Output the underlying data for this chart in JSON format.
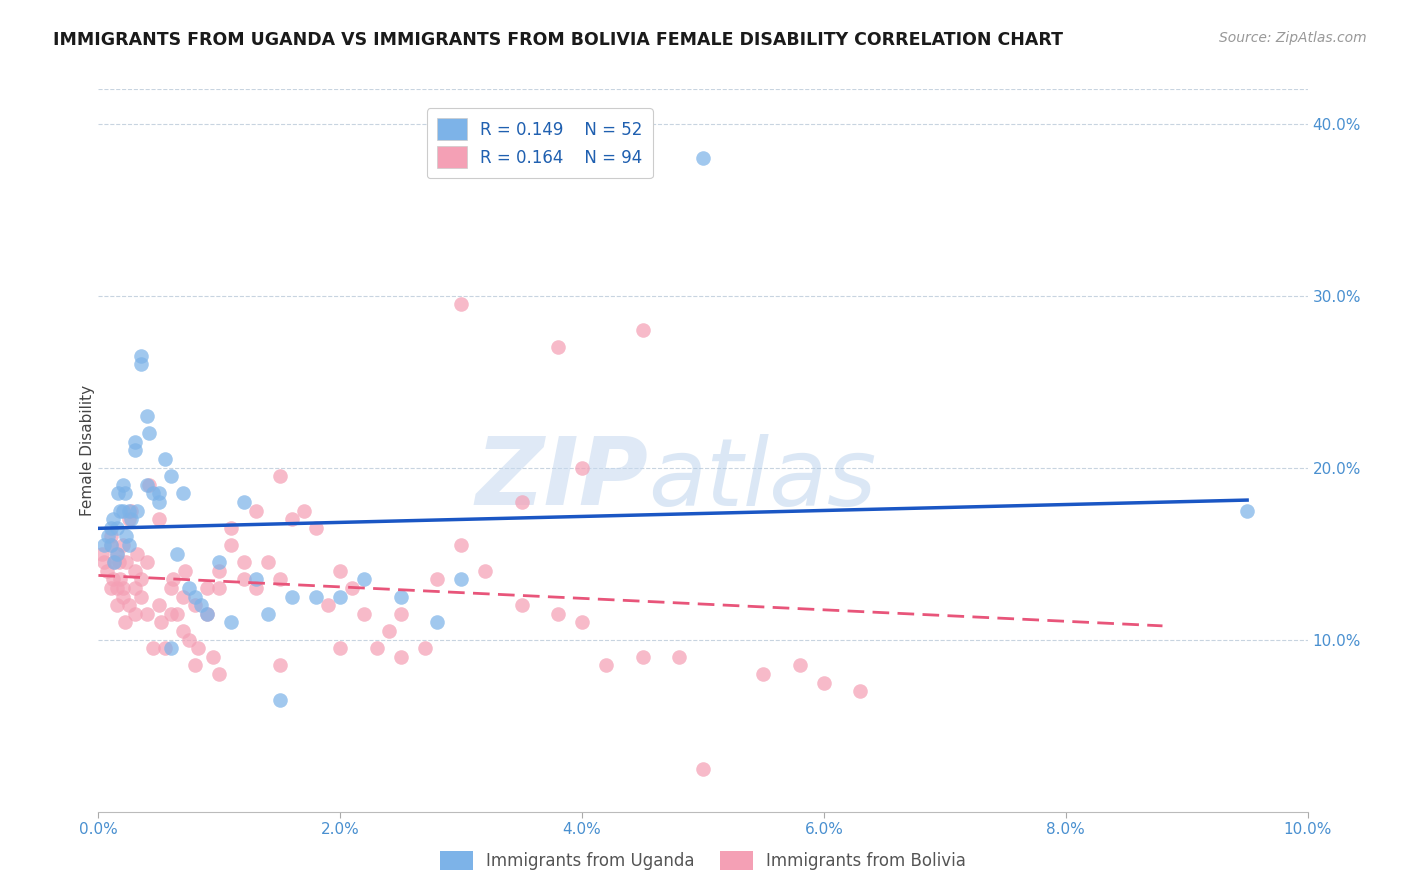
{
  "title": "IMMIGRANTS FROM UGANDA VS IMMIGRANTS FROM BOLIVIA FEMALE DISABILITY CORRELATION CHART",
  "source": "Source: ZipAtlas.com",
  "ylabel": "Female Disability",
  "xlim": [
    0.0,
    0.1
  ],
  "ylim": [
    0.0,
    0.42
  ],
  "ytick_right_labels": [
    "10.0%",
    "20.0%",
    "30.0%",
    "40.0%"
  ],
  "ytick_right_values": [
    0.1,
    0.2,
    0.3,
    0.4
  ],
  "legend_label1": "Immigrants from Uganda",
  "legend_label2": "Immigrants from Bolivia",
  "color_uganda": "#7db3e8",
  "color_bolivia": "#f4a0b5",
  "color_uganda_line": "#1a56c4",
  "color_bolivia_line": "#e8557a",
  "uganda_x": [
    0.0005,
    0.0008,
    0.001,
    0.001,
    0.0012,
    0.0013,
    0.0015,
    0.0015,
    0.0016,
    0.0018,
    0.002,
    0.002,
    0.0022,
    0.0023,
    0.0025,
    0.0025,
    0.0027,
    0.003,
    0.003,
    0.0032,
    0.0035,
    0.0035,
    0.004,
    0.004,
    0.0042,
    0.0045,
    0.005,
    0.005,
    0.0055,
    0.006,
    0.006,
    0.0065,
    0.007,
    0.0075,
    0.008,
    0.0085,
    0.009,
    0.01,
    0.011,
    0.012,
    0.013,
    0.014,
    0.015,
    0.016,
    0.018,
    0.02,
    0.022,
    0.025,
    0.028,
    0.03,
    0.05,
    0.095
  ],
  "uganda_y": [
    0.155,
    0.16,
    0.155,
    0.165,
    0.17,
    0.145,
    0.15,
    0.165,
    0.185,
    0.175,
    0.19,
    0.175,
    0.185,
    0.16,
    0.175,
    0.155,
    0.17,
    0.215,
    0.21,
    0.175,
    0.265,
    0.26,
    0.23,
    0.19,
    0.22,
    0.185,
    0.185,
    0.18,
    0.205,
    0.195,
    0.095,
    0.15,
    0.185,
    0.13,
    0.125,
    0.12,
    0.115,
    0.145,
    0.11,
    0.18,
    0.135,
    0.115,
    0.065,
    0.125,
    0.125,
    0.125,
    0.135,
    0.125,
    0.11,
    0.135,
    0.38,
    0.175
  ],
  "bolivia_x": [
    0.0003,
    0.0005,
    0.0007,
    0.001,
    0.001,
    0.001,
    0.0012,
    0.0013,
    0.0015,
    0.0015,
    0.0015,
    0.0017,
    0.0018,
    0.002,
    0.002,
    0.002,
    0.0022,
    0.0023,
    0.0025,
    0.0025,
    0.0027,
    0.003,
    0.003,
    0.003,
    0.0032,
    0.0035,
    0.0035,
    0.004,
    0.004,
    0.0042,
    0.0045,
    0.005,
    0.005,
    0.0052,
    0.0055,
    0.006,
    0.006,
    0.0062,
    0.0065,
    0.007,
    0.007,
    0.0072,
    0.0075,
    0.008,
    0.008,
    0.0082,
    0.009,
    0.009,
    0.0095,
    0.01,
    0.01,
    0.011,
    0.011,
    0.012,
    0.012,
    0.013,
    0.013,
    0.014,
    0.015,
    0.015,
    0.016,
    0.017,
    0.018,
    0.019,
    0.02,
    0.021,
    0.022,
    0.023,
    0.024,
    0.025,
    0.027,
    0.028,
    0.03,
    0.032,
    0.035,
    0.038,
    0.04,
    0.042,
    0.045,
    0.048,
    0.03,
    0.045,
    0.05,
    0.055,
    0.038,
    0.02,
    0.015,
    0.01,
    0.058,
    0.06,
    0.063,
    0.04,
    0.035,
    0.025
  ],
  "bolivia_y": [
    0.15,
    0.145,
    0.14,
    0.155,
    0.13,
    0.16,
    0.135,
    0.145,
    0.15,
    0.13,
    0.12,
    0.145,
    0.135,
    0.13,
    0.125,
    0.155,
    0.11,
    0.145,
    0.17,
    0.12,
    0.175,
    0.14,
    0.13,
    0.115,
    0.15,
    0.135,
    0.125,
    0.145,
    0.115,
    0.19,
    0.095,
    0.12,
    0.17,
    0.11,
    0.095,
    0.13,
    0.115,
    0.135,
    0.115,
    0.125,
    0.105,
    0.14,
    0.1,
    0.085,
    0.12,
    0.095,
    0.13,
    0.115,
    0.09,
    0.14,
    0.13,
    0.165,
    0.155,
    0.135,
    0.145,
    0.175,
    0.13,
    0.145,
    0.135,
    0.195,
    0.17,
    0.175,
    0.165,
    0.12,
    0.14,
    0.13,
    0.115,
    0.095,
    0.105,
    0.115,
    0.095,
    0.135,
    0.155,
    0.14,
    0.12,
    0.115,
    0.11,
    0.085,
    0.09,
    0.09,
    0.295,
    0.28,
    0.025,
    0.08,
    0.27,
    0.095,
    0.085,
    0.08,
    0.085,
    0.075,
    0.07,
    0.2,
    0.18,
    0.09
  ]
}
